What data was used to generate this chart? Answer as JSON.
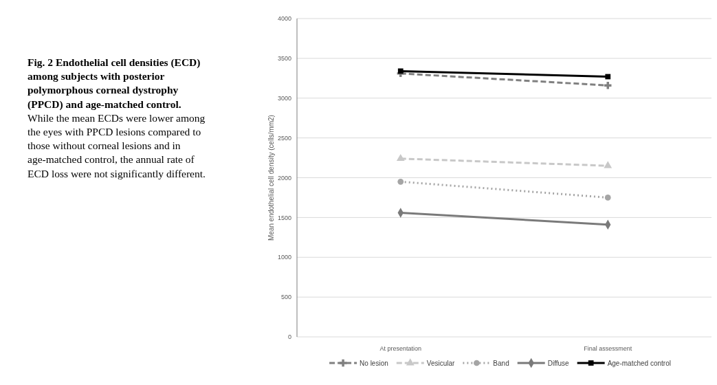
{
  "chart_data": {
    "type": "line",
    "title": "Fig. 2 Endothelial cell densities (ECD) among subjects with posterior polymorphous corneal dystrophy (PPCD) and age-matched control.",
    "subtitle": "While the mean ECDs were lower among the eyes with PPCD lesions compared to those without corneal lesions and in age-matched control, the annual rate of ECD loss were not significantly different.",
    "ylabel": "Mean endothelial cell density (cells/mm2)",
    "categories": [
      "At presentation",
      "Final assessment"
    ],
    "series": [
      {
        "name": "No lesion",
        "color": "#808080",
        "values": [
          3310,
          3160
        ],
        "marker": "cross",
        "line_style": "dashed"
      },
      {
        "name": "Vesicular",
        "color": "#c8c8c8",
        "values": [
          2240,
          2150
        ],
        "marker": "triangle",
        "line_style": "dashed"
      },
      {
        "name": "Band",
        "color": "#a5a5a5",
        "values": [
          1950,
          1750
        ],
        "marker": "circle",
        "line_style": "dotted"
      },
      {
        "name": "Diffuse",
        "color": "#7a7a7a",
        "values": [
          1560,
          1410
        ],
        "marker": "diamond",
        "line_style": "solid"
      },
      {
        "name": "Age-matched control",
        "color": "#000000",
        "values": [
          3340,
          3270
        ],
        "marker": "square",
        "line_style": "solid"
      }
    ],
    "ylim": [
      0,
      4000
    ],
    "yticks": [
      0,
      500,
      1000,
      1500,
      2000,
      2500,
      3000,
      3500,
      4000
    ],
    "grid": "y",
    "legend": "bottom"
  }
}
